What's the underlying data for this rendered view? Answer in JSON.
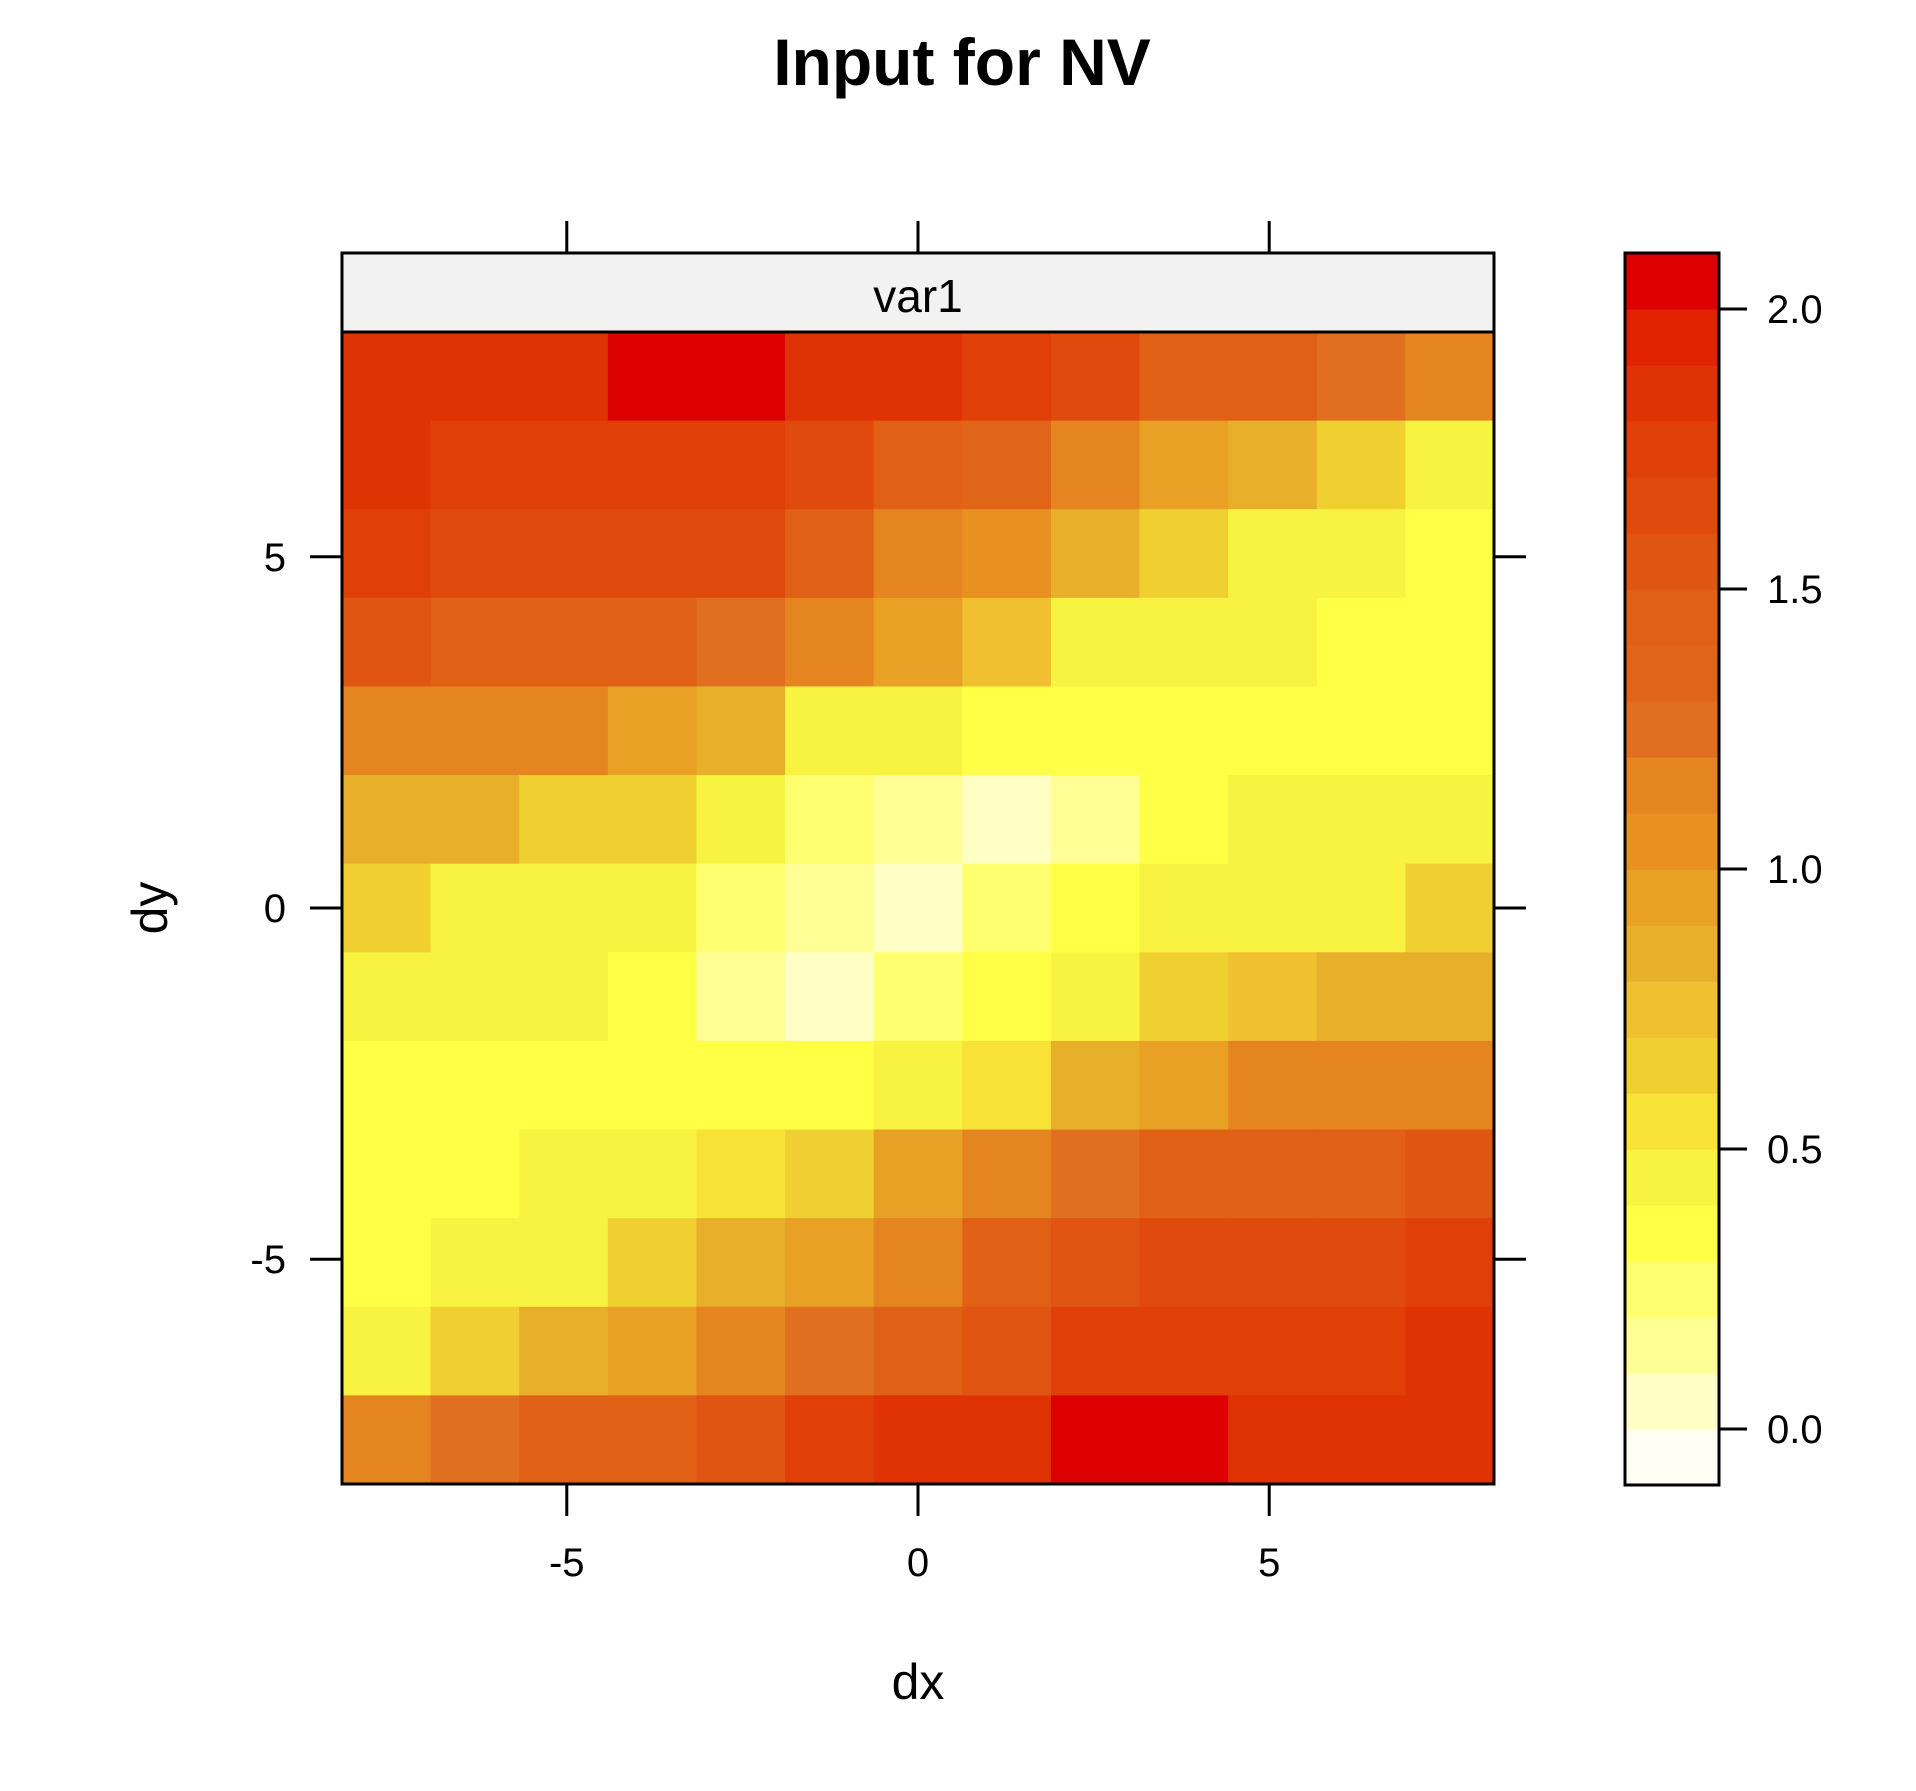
{
  "chart_data": {
    "type": "heatmap",
    "title": "Input for NV",
    "panel_label": "var1",
    "xlabel": "dx",
    "ylabel": "dy",
    "xlim": [
      -8.2,
      8.2
    ],
    "ylim": [
      -8.2,
      8.2
    ],
    "xticks": [
      -5,
      0,
      5
    ],
    "xtick_labels": [
      "-5",
      "0",
      "5"
    ],
    "yticks": [
      -5,
      0,
      5
    ],
    "ytick_labels": [
      "-5",
      "0",
      "5"
    ],
    "x": [
      -7.6,
      -6.3,
      -5.1,
      -3.8,
      -2.5,
      -1.3,
      0,
      1.3,
      2.5,
      3.8,
      5.1,
      6.3,
      7.6
    ],
    "y": [
      7.6,
      6.3,
      5.1,
      3.8,
      2.5,
      1.3,
      0,
      -1.3,
      -2.5,
      -3.8,
      -5.1,
      -6.3,
      -7.6
    ],
    "z": [
      [
        1.85,
        1.85,
        1.85,
        2.0,
        2.0,
        1.85,
        1.8,
        1.7,
        1.6,
        1.4,
        1.4,
        1.25,
        1.1
      ],
      [
        1.8,
        1.7,
        1.7,
        1.7,
        1.7,
        1.6,
        1.4,
        1.3,
        1.1,
        0.9,
        0.8,
        0.6,
        0.45
      ],
      [
        1.7,
        1.6,
        1.6,
        1.6,
        1.6,
        1.45,
        1.1,
        1.0,
        0.85,
        0.65,
        0.45,
        0.4,
        0.3
      ],
      [
        1.55,
        1.4,
        1.4,
        1.4,
        1.25,
        1.1,
        0.9,
        0.7,
        0.45,
        0.45,
        0.45,
        0.3,
        0.3
      ],
      [
        1.1,
        1.1,
        1.1,
        0.9,
        0.8,
        0.45,
        0.4,
        0.3,
        0.3,
        0.3,
        0.3,
        0.3,
        0.3
      ],
      [
        0.8,
        0.8,
        0.65,
        0.65,
        0.4,
        0.25,
        0.1,
        0.0,
        0.12,
        0.3,
        0.4,
        0.45,
        0.45
      ],
      [
        0.65,
        0.45,
        0.45,
        0.4,
        0.25,
        0.15,
        0.0,
        0.2,
        0.3,
        0.4,
        0.45,
        0.45,
        0.65
      ],
      [
        0.45,
        0.45,
        0.45,
        0.3,
        0.15,
        0.0,
        0.2,
        0.3,
        0.45,
        0.65,
        0.7,
        0.8,
        0.8
      ],
      [
        0.3,
        0.3,
        0.3,
        0.3,
        0.3,
        0.3,
        0.45,
        0.5,
        0.8,
        0.9,
        1.1,
        1.1,
        1.1
      ],
      [
        0.3,
        0.3,
        0.45,
        0.45,
        0.5,
        0.65,
        0.9,
        1.1,
        1.25,
        1.4,
        1.4,
        1.4,
        1.55
      ],
      [
        0.3,
        0.45,
        0.45,
        0.65,
        0.8,
        0.9,
        1.1,
        1.4,
        1.55,
        1.6,
        1.6,
        1.6,
        1.7
      ],
      [
        0.45,
        0.65,
        0.8,
        0.9,
        1.1,
        1.25,
        1.4,
        1.55,
        1.7,
        1.7,
        1.7,
        1.7,
        1.8
      ],
      [
        1.1,
        1.25,
        1.4,
        1.4,
        1.55,
        1.7,
        1.8,
        1.85,
        2.0,
        2.0,
        1.85,
        1.85,
        1.85
      ]
    ],
    "colorbar": {
      "range": [
        -0.1,
        2.1
      ],
      "ticks": [
        0.0,
        0.5,
        1.0,
        1.5,
        2.0
      ],
      "tick_labels": [
        "0.0",
        "0.5",
        "1.0",
        "1.5",
        "2.0"
      ],
      "breaks": [
        -0.1,
        0.0,
        0.1,
        0.2,
        0.3,
        0.4,
        0.5,
        0.6,
        0.7,
        0.8,
        0.9,
        1.0,
        1.1,
        1.2,
        1.3,
        1.4,
        1.5,
        1.6,
        1.7,
        1.8,
        1.9,
        2.0,
        2.1
      ],
      "colors": [
        "#fffff5",
        "#ffffc5",
        "#ffff95",
        "#ffff70",
        "#ffff45",
        "#f8f240",
        "#f8e236",
        "#f0d030",
        "#f0c030",
        "#e8b02a",
        "#e8a025",
        "#e89020",
        "#e58520",
        "#e07020",
        "#e06519",
        "#e06015",
        "#e05512",
        "#e04a0c",
        "#e04008",
        "#e03305",
        "#e02200",
        "#dd0000"
      ]
    },
    "strip_color": "#f2f2f2"
  }
}
